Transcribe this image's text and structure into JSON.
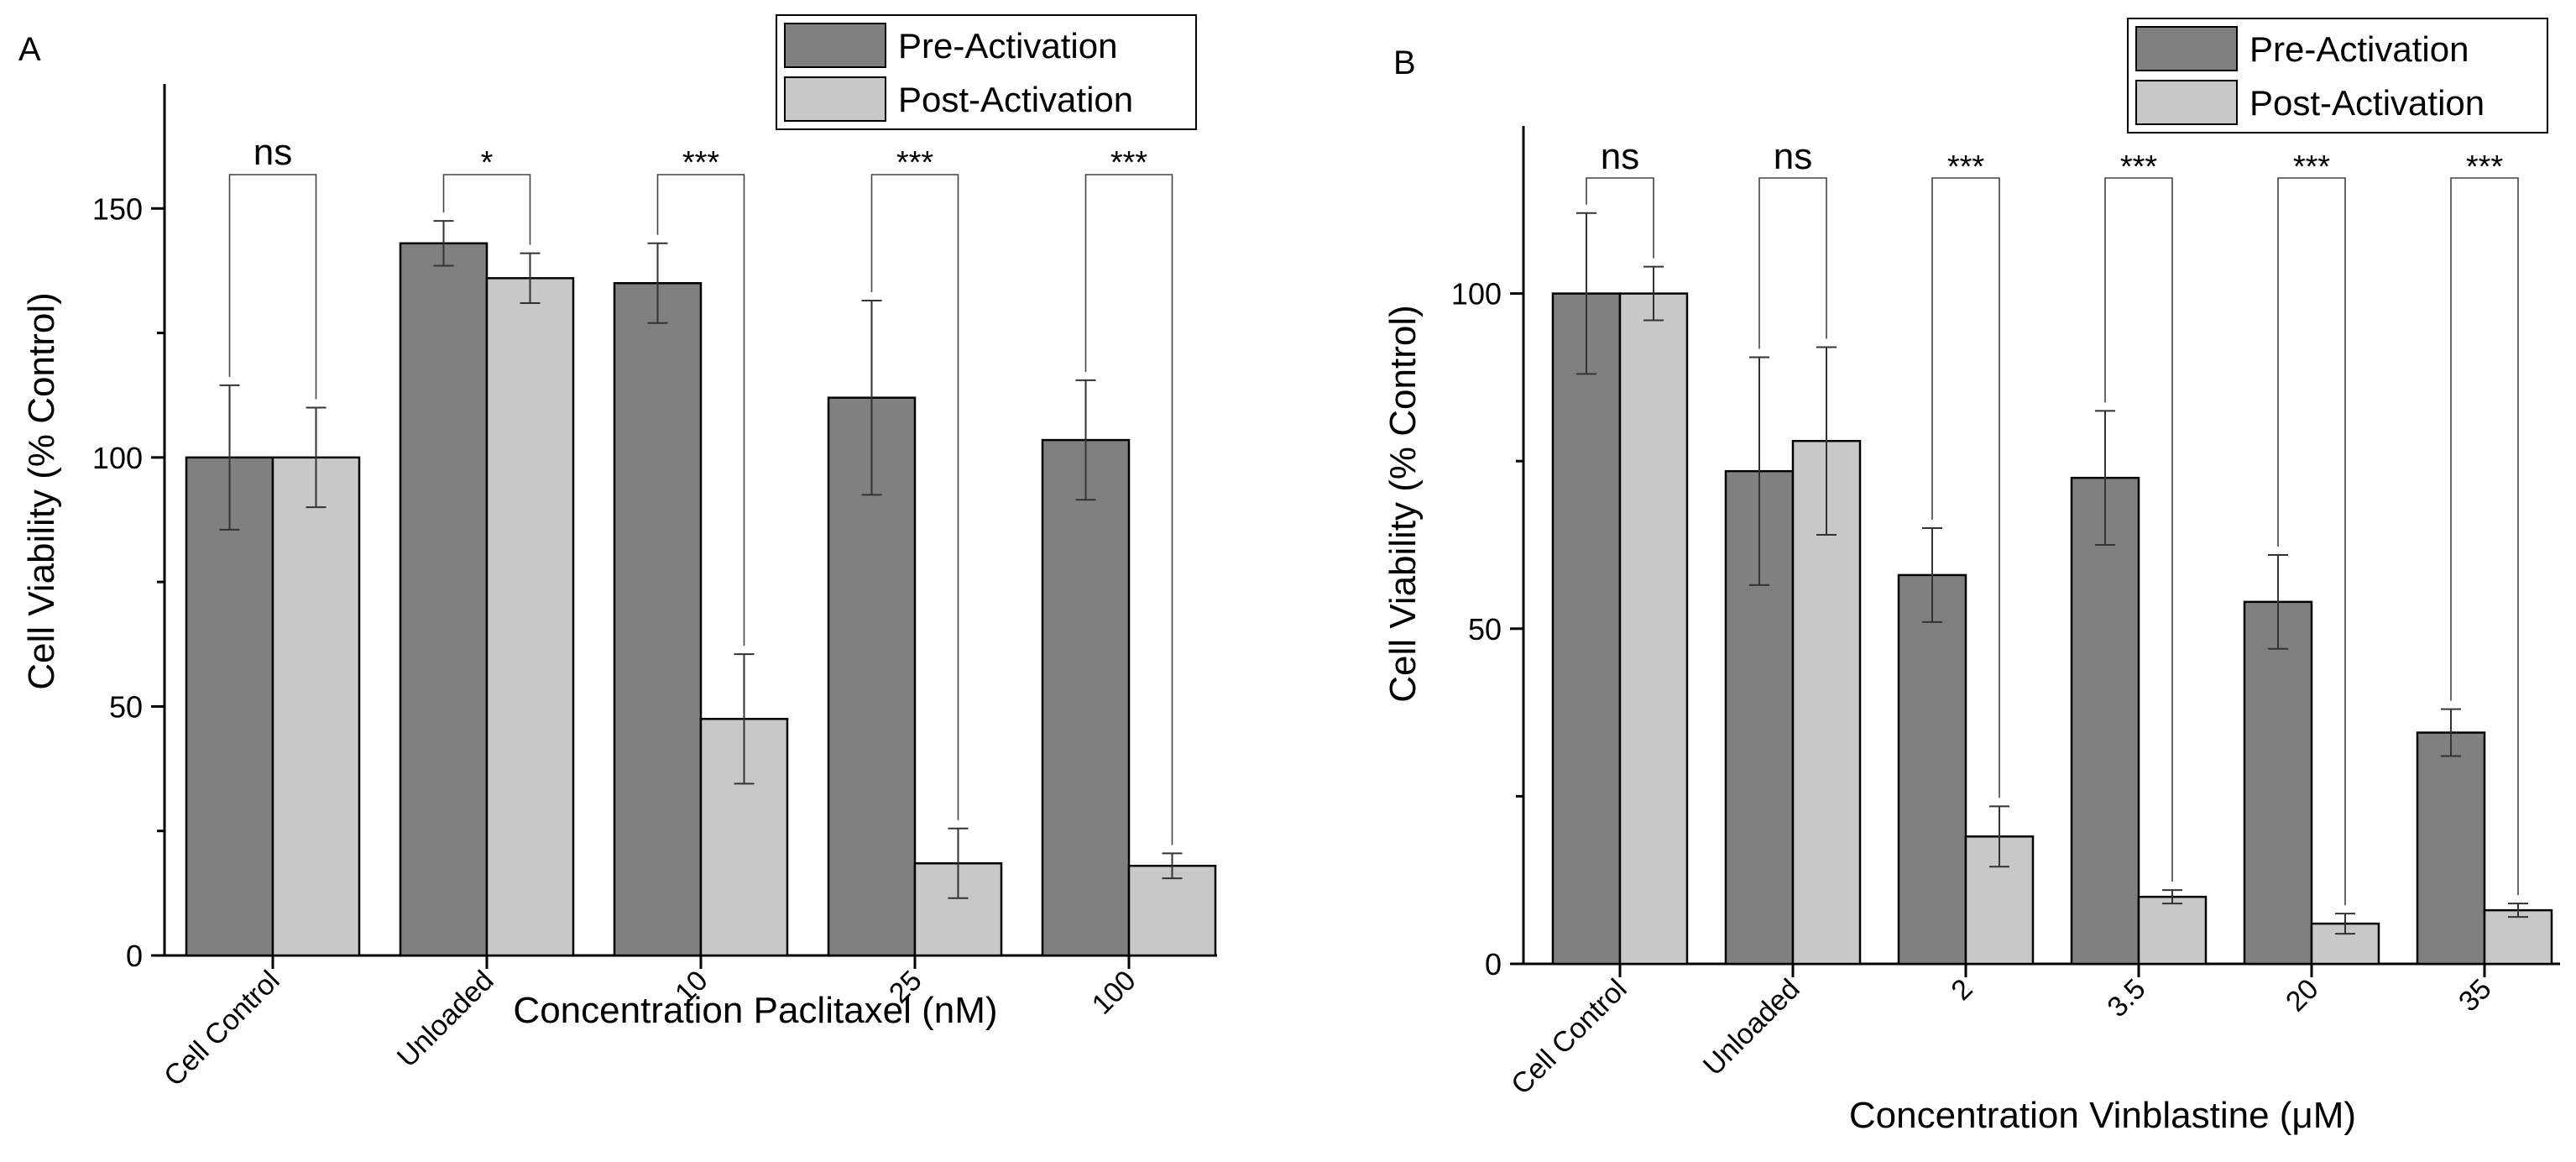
{
  "chart_data": [
    {
      "type": "bar",
      "panel_label": "A",
      "xlabel": "Concentration Paclitaxel (nM)",
      "ylabel": "Cell Viability (% Control)",
      "ylim": [
        0,
        175
      ],
      "yticks": [
        "0",
        "50",
        "100",
        "150"
      ],
      "categories": [
        "Cell Control",
        "Unloaded",
        "10",
        "25",
        "100"
      ],
      "series": [
        {
          "name": "Pre-Activation",
          "color": "#808080",
          "values": [
            100,
            143,
            135,
            112,
            103.5
          ],
          "errors": [
            14.5,
            4.5,
            8,
            19.5,
            12
          ]
        },
        {
          "name": "Post-Activation",
          "color": "#c8c8c8",
          "values": [
            100,
            136,
            47.5,
            18.5,
            18
          ],
          "errors": [
            10,
            5,
            13,
            7,
            2.5
          ]
        }
      ],
      "significance": [
        "ns",
        "*",
        "***",
        "***",
        "***"
      ],
      "legend": {
        "position": "top-right",
        "entries": [
          "Pre-Activation",
          "Post-Activation"
        ]
      }
    },
    {
      "type": "bar",
      "panel_label": "B",
      "xlabel": "Concentration Vinblastine (μM)",
      "ylabel": "Cell Viability (% Control)",
      "ylim": [
        0,
        125
      ],
      "yticks": [
        "0",
        "50",
        "100"
      ],
      "categories": [
        "Cell Control",
        "Unloaded",
        "2",
        "3.5",
        "20",
        "35"
      ],
      "series": [
        {
          "name": "Pre-Activation",
          "color": "#808080",
          "values": [
            100,
            73.5,
            58,
            72.5,
            54,
            34.5
          ],
          "errors": [
            12,
            17,
            7,
            10,
            7,
            3.5
          ]
        },
        {
          "name": "Post-Activation",
          "color": "#c8c8c8",
          "values": [
            100,
            78,
            19,
            10,
            6,
            8
          ],
          "errors": [
            4,
            14,
            4.5,
            1,
            1.5,
            1
          ]
        }
      ],
      "significance": [
        "ns",
        "ns",
        "***",
        "***",
        "***",
        "***"
      ],
      "legend": {
        "position": "top-right",
        "entries": [
          "Pre-Activation",
          "Post-Activation"
        ]
      }
    }
  ]
}
